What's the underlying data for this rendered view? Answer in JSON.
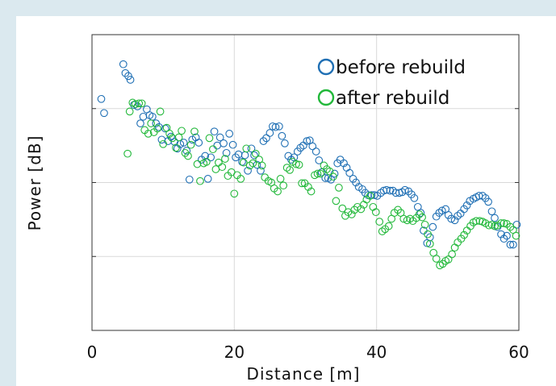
{
  "chart_data": {
    "type": "scatter",
    "title": "",
    "xlabel": "Distance [m]",
    "ylabel": "Power [dB]",
    "xlim": [
      0,
      60
    ],
    "ylim": [
      0,
      4
    ],
    "xticks": [
      "0",
      "20",
      "40",
      "60"
    ],
    "grid": true,
    "legend_position": "top-right",
    "series": [
      {
        "name": "before rebuild",
        "color": "#1f6fb4",
        "points": [
          [
            1.3,
            3.13
          ],
          [
            1.7,
            2.94
          ],
          [
            4.4,
            3.6
          ],
          [
            4.7,
            3.48
          ],
          [
            5.1,
            3.44
          ],
          [
            5.4,
            3.39
          ],
          [
            5.9,
            3.05
          ],
          [
            6.4,
            3.03
          ],
          [
            6.8,
            2.8
          ],
          [
            7.2,
            2.89
          ],
          [
            7.7,
            2.99
          ],
          [
            8.1,
            2.91
          ],
          [
            8.5,
            2.89
          ],
          [
            9.0,
            2.8
          ],
          [
            9.4,
            2.75
          ],
          [
            9.8,
            2.58
          ],
          [
            10.3,
            2.73
          ],
          [
            10.7,
            2.56
          ],
          [
            11.1,
            2.62
          ],
          [
            11.6,
            2.55
          ],
          [
            12.0,
            2.46
          ],
          [
            12.4,
            2.52
          ],
          [
            12.9,
            2.54
          ],
          [
            13.3,
            2.43
          ],
          [
            13.7,
            2.04
          ],
          [
            14.1,
            2.58
          ],
          [
            14.6,
            2.61
          ],
          [
            15.0,
            2.54
          ],
          [
            15.4,
            2.31
          ],
          [
            15.9,
            2.36
          ],
          [
            16.3,
            2.05
          ],
          [
            16.7,
            2.34
          ],
          [
            17.2,
            2.69
          ],
          [
            17.6,
            2.5
          ],
          [
            18.0,
            2.61
          ],
          [
            18.5,
            2.53
          ],
          [
            18.9,
            2.4
          ],
          [
            19.3,
            2.66
          ],
          [
            19.8,
            2.51
          ],
          [
            20.2,
            2.34
          ],
          [
            20.6,
            2.38
          ],
          [
            21.1,
            2.28
          ],
          [
            21.5,
            2.37
          ],
          [
            21.9,
            2.16
          ],
          [
            22.4,
            2.46
          ],
          [
            22.8,
            2.37
          ],
          [
            23.2,
            2.24
          ],
          [
            23.7,
            2.16
          ],
          [
            24.1,
            2.56
          ],
          [
            24.5,
            2.6
          ],
          [
            25.0,
            2.67
          ],
          [
            25.4,
            2.76
          ],
          [
            25.8,
            2.75
          ],
          [
            26.3,
            2.76
          ],
          [
            26.7,
            2.63
          ],
          [
            27.1,
            2.53
          ],
          [
            27.6,
            2.36
          ],
          [
            28.0,
            2.31
          ],
          [
            28.4,
            2.34
          ],
          [
            28.9,
            2.42
          ],
          [
            29.3,
            2.47
          ],
          [
            29.7,
            2.5
          ],
          [
            30.2,
            2.56
          ],
          [
            30.6,
            2.57
          ],
          [
            31.0,
            2.49
          ],
          [
            31.5,
            2.42
          ],
          [
            31.9,
            2.3
          ],
          [
            32.3,
            2.14
          ],
          [
            32.8,
            2.06
          ],
          [
            33.2,
            2.06
          ],
          [
            33.6,
            2.04
          ],
          [
            34.1,
            2.12
          ],
          [
            34.5,
            2.26
          ],
          [
            34.9,
            2.31
          ],
          [
            35.4,
            2.26
          ],
          [
            35.8,
            2.2
          ],
          [
            36.2,
            2.13
          ],
          [
            36.7,
            2.05
          ],
          [
            37.1,
            2.0
          ],
          [
            37.5,
            1.94
          ],
          [
            38.0,
            1.91
          ],
          [
            38.4,
            1.86
          ],
          [
            38.8,
            1.83
          ],
          [
            39.3,
            1.83
          ],
          [
            39.7,
            1.83
          ],
          [
            40.1,
            1.82
          ],
          [
            40.6,
            1.86
          ],
          [
            41.0,
            1.89
          ],
          [
            41.4,
            1.9
          ],
          [
            41.9,
            1.89
          ],
          [
            42.3,
            1.89
          ],
          [
            42.7,
            1.86
          ],
          [
            43.2,
            1.86
          ],
          [
            43.6,
            1.87
          ],
          [
            44.0,
            1.9
          ],
          [
            44.5,
            1.88
          ],
          [
            44.9,
            1.84
          ],
          [
            45.3,
            1.79
          ],
          [
            45.8,
            1.67
          ],
          [
            46.2,
            1.59
          ],
          [
            46.6,
            1.35
          ],
          [
            47.1,
            1.18
          ],
          [
            47.5,
            1.26
          ],
          [
            47.9,
            1.4
          ],
          [
            48.4,
            1.54
          ],
          [
            48.8,
            1.59
          ],
          [
            49.2,
            1.62
          ],
          [
            49.7,
            1.64
          ],
          [
            50.1,
            1.56
          ],
          [
            50.5,
            1.51
          ],
          [
            51.0,
            1.49
          ],
          [
            51.4,
            1.55
          ],
          [
            51.8,
            1.58
          ],
          [
            52.3,
            1.64
          ],
          [
            52.7,
            1.69
          ],
          [
            53.1,
            1.75
          ],
          [
            53.6,
            1.78
          ],
          [
            54.0,
            1.8
          ],
          [
            54.4,
            1.82
          ],
          [
            54.9,
            1.82
          ],
          [
            55.3,
            1.79
          ],
          [
            55.7,
            1.74
          ],
          [
            56.2,
            1.61
          ],
          [
            56.6,
            1.52
          ],
          [
            57.0,
            1.4
          ],
          [
            57.5,
            1.3
          ],
          [
            57.9,
            1.24
          ],
          [
            58.3,
            1.28
          ],
          [
            58.8,
            1.16
          ],
          [
            59.2,
            1.16
          ],
          [
            59.7,
            1.43
          ]
        ]
      },
      {
        "name": "after rebuild",
        "color": "#22b83a",
        "points": [
          [
            5.0,
            2.39
          ],
          [
            5.3,
            2.96
          ],
          [
            5.7,
            3.08
          ],
          [
            6.1,
            3.06
          ],
          [
            6.6,
            3.07
          ],
          [
            7.0,
            3.07
          ],
          [
            7.4,
            2.71
          ],
          [
            7.9,
            2.66
          ],
          [
            8.3,
            2.8
          ],
          [
            8.7,
            2.68
          ],
          [
            9.2,
            2.73
          ],
          [
            9.6,
            2.96
          ],
          [
            10.0,
            2.52
          ],
          [
            10.5,
            2.74
          ],
          [
            10.9,
            2.66
          ],
          [
            11.3,
            2.6
          ],
          [
            11.8,
            2.47
          ],
          [
            12.2,
            2.61
          ],
          [
            12.6,
            2.7
          ],
          [
            13.1,
            2.4
          ],
          [
            13.5,
            2.36
          ],
          [
            13.9,
            2.51
          ],
          [
            14.4,
            2.69
          ],
          [
            14.8,
            2.25
          ],
          [
            15.2,
            2.02
          ],
          [
            15.7,
            2.26
          ],
          [
            16.1,
            2.28
          ],
          [
            16.5,
            2.6
          ],
          [
            17.0,
            2.45
          ],
          [
            17.4,
            2.18
          ],
          [
            17.8,
            2.27
          ],
          [
            18.3,
            2.21
          ],
          [
            18.7,
            2.32
          ],
          [
            19.1,
            2.09
          ],
          [
            19.6,
            2.14
          ],
          [
            20.0,
            1.85
          ],
          [
            20.4,
            2.1
          ],
          [
            20.9,
            2.05
          ],
          [
            21.3,
            2.27
          ],
          [
            21.7,
            2.46
          ],
          [
            22.2,
            2.23
          ],
          [
            22.6,
            2.26
          ],
          [
            23.0,
            2.39
          ],
          [
            23.5,
            2.31
          ],
          [
            23.9,
            2.23
          ],
          [
            24.3,
            2.07
          ],
          [
            24.8,
            2.02
          ],
          [
            25.2,
            2.0
          ],
          [
            25.6,
            1.92
          ],
          [
            26.1,
            1.88
          ],
          [
            26.5,
            2.05
          ],
          [
            26.9,
            1.96
          ],
          [
            27.4,
            2.2
          ],
          [
            27.8,
            2.17
          ],
          [
            28.2,
            2.28
          ],
          [
            28.7,
            2.25
          ],
          [
            29.1,
            2.24
          ],
          [
            29.5,
            1.99
          ],
          [
            29.9,
            1.99
          ],
          [
            30.4,
            1.94
          ],
          [
            30.8,
            1.88
          ],
          [
            31.3,
            2.1
          ],
          [
            31.7,
            2.12
          ],
          [
            32.1,
            2.12
          ],
          [
            32.6,
            2.23
          ],
          [
            33.0,
            2.18
          ],
          [
            33.4,
            2.15
          ],
          [
            33.9,
            2.08
          ],
          [
            34.3,
            1.75
          ],
          [
            34.7,
            1.93
          ],
          [
            35.2,
            1.65
          ],
          [
            35.6,
            1.55
          ],
          [
            36.0,
            1.6
          ],
          [
            36.5,
            1.57
          ],
          [
            36.9,
            1.63
          ],
          [
            37.3,
            1.67
          ],
          [
            37.8,
            1.64
          ],
          [
            38.2,
            1.7
          ],
          [
            38.6,
            1.77
          ],
          [
            39.1,
            1.82
          ],
          [
            39.5,
            1.67
          ],
          [
            39.9,
            1.6
          ],
          [
            40.4,
            1.47
          ],
          [
            40.8,
            1.34
          ],
          [
            41.2,
            1.37
          ],
          [
            41.7,
            1.41
          ],
          [
            42.1,
            1.51
          ],
          [
            42.5,
            1.59
          ],
          [
            43.0,
            1.63
          ],
          [
            43.4,
            1.59
          ],
          [
            43.8,
            1.51
          ],
          [
            44.3,
            1.49
          ],
          [
            44.7,
            1.51
          ],
          [
            45.1,
            1.48
          ],
          [
            45.6,
            1.52
          ],
          [
            46.0,
            1.57
          ],
          [
            46.4,
            1.53
          ],
          [
            46.8,
            1.43
          ],
          [
            47.2,
            1.3
          ],
          [
            47.5,
            1.17
          ],
          [
            48.0,
            1.05
          ],
          [
            48.4,
            0.97
          ],
          [
            48.9,
            0.88
          ],
          [
            49.3,
            0.9
          ],
          [
            49.7,
            0.94
          ],
          [
            50.1,
            0.96
          ],
          [
            50.6,
            1.03
          ],
          [
            51.0,
            1.12
          ],
          [
            51.4,
            1.19
          ],
          [
            51.9,
            1.24
          ],
          [
            52.3,
            1.29
          ],
          [
            52.7,
            1.35
          ],
          [
            53.2,
            1.41
          ],
          [
            53.6,
            1.46
          ],
          [
            54.0,
            1.48
          ],
          [
            54.5,
            1.48
          ],
          [
            54.9,
            1.47
          ],
          [
            55.3,
            1.45
          ],
          [
            55.8,
            1.42
          ],
          [
            56.2,
            1.43
          ],
          [
            56.6,
            1.41
          ],
          [
            57.0,
            1.42
          ],
          [
            57.5,
            1.45
          ],
          [
            57.9,
            1.45
          ],
          [
            58.3,
            1.44
          ],
          [
            58.8,
            1.4
          ],
          [
            59.2,
            1.36
          ],
          [
            59.6,
            1.28
          ]
        ]
      }
    ]
  }
}
